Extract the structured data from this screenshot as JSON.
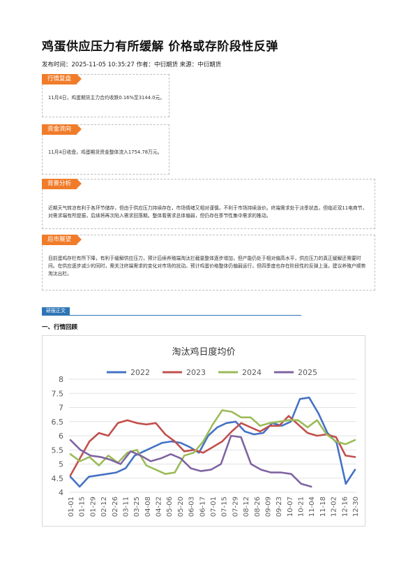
{
  "article": {
    "title": "鸡蛋供应压力有所缓解 价格或存阶段性反弹",
    "meta": "发布时间：2025-11-05 10:35:27 作者：中衍期货 来源：中衍期货"
  },
  "sections": {
    "review": {
      "tag": "行情复盘",
      "text": "11月4日，鸡蛋期货主力合约收跌0.16%至3144.0元。"
    },
    "funds": {
      "tag": "资金流向",
      "text": "11月4日收盘，鸡蛋期货资金整体流入1754.78万元。"
    },
    "background": {
      "tag": "背景分析",
      "text": "近期天气转凉有利于各环节储存，但由于供应压力持续存在，市场情绪又相对谨慎，不利于市场持续涨价。终端需求处于淡季状态，但临近双11电商节，对需求端有所提振，后续将再次陷入需求回落期。整体看需求总体偏弱，但仍存在季节性集中需求的推动。"
    },
    "outlook": {
      "tag": "后市展望",
      "text": "目前蛋鸡存栏有所下降，有利于缓解供应压力，预计后续养殖端淘汰拦截量整体逐步增加，但产能仍处于相对偏高水平，供应压力的真正缓解还需要时间。在供应逐步减少的同时，需关注终端需求的变化对市场的扰动。预计鸡蛋价格整体仍偏弱运行，但四季度也存在阶段性的反弹上涨，建议养殖户顺势淘汰出栏。"
    }
  },
  "report": {
    "tag": "研报正文",
    "heading": "一、行情回顾"
  },
  "chart_data": {
    "type": "line",
    "title": "淘汰鸡日度均价",
    "xlabel": "",
    "ylabel": "",
    "ylim": [
      4,
      8
    ],
    "yticks": [
      "4",
      "4.5",
      "5",
      "5.5",
      "6",
      "6.5",
      "7",
      "7.5",
      "8"
    ],
    "grid": true,
    "legend_position": "top",
    "x_tick_labels": [
      "01-01",
      "01-15",
      "01-29",
      "02-12",
      "02-26",
      "03-11",
      "03-25",
      "04-08",
      "04-22",
      "05-06",
      "05-20",
      "06-03",
      "06-17",
      "07-01",
      "07-15",
      "07-29",
      "08-12",
      "08-26",
      "09-09",
      "09-23",
      "10-07",
      "10-21",
      "11-04",
      "11-18",
      "12-02",
      "12-16",
      "12-30"
    ],
    "series": [
      {
        "name": "2022",
        "color": "#4472c4",
        "values": [
          4.55,
          4.2,
          4.55,
          4.6,
          4.65,
          4.7,
          4.85,
          5.3,
          5.45,
          5.6,
          5.75,
          5.8,
          5.75,
          5.6,
          5.4,
          6.0,
          6.3,
          6.45,
          6.5,
          6.15,
          6.05,
          6.1,
          6.45,
          6.35,
          6.5,
          7.3,
          7.35,
          6.8,
          6.1,
          5.75,
          4.3,
          4.8
        ]
      },
      {
        "name": "2023",
        "color": "#c0504d",
        "values": [
          4.6,
          5.2,
          5.8,
          6.1,
          6.0,
          6.45,
          6.55,
          6.45,
          6.4,
          6.45,
          6.05,
          5.8,
          5.45,
          5.5,
          5.4,
          5.6,
          5.8,
          6.15,
          6.45,
          6.3,
          6.15,
          6.35,
          6.35,
          6.7,
          6.4,
          6.1,
          6.0,
          6.05,
          5.95,
          5.3,
          5.25
        ]
      },
      {
        "name": "2024",
        "color": "#9bbb59",
        "values": [
          5.35,
          5.1,
          5.25,
          4.95,
          5.3,
          5.05,
          5.4,
          5.5,
          4.95,
          4.8,
          4.65,
          4.7,
          5.3,
          5.4,
          5.8,
          6.4,
          6.9,
          6.85,
          6.65,
          6.65,
          6.35,
          6.45,
          6.5,
          6.55,
          6.55,
          6.3,
          6.55,
          6.05,
          5.8,
          5.7,
          5.85
        ]
      },
      {
        "name": "2025",
        "color": "#8064a2",
        "values": [
          5.85,
          5.5,
          5.3,
          5.25,
          5.15,
          5.0,
          5.45,
          5.3,
          5.1,
          5.2,
          5.35,
          5.2,
          4.85,
          4.75,
          4.8,
          5.0,
          6.0,
          5.95,
          5.0,
          4.8,
          4.7,
          4.7,
          4.65,
          4.3,
          4.2
        ]
      }
    ]
  }
}
